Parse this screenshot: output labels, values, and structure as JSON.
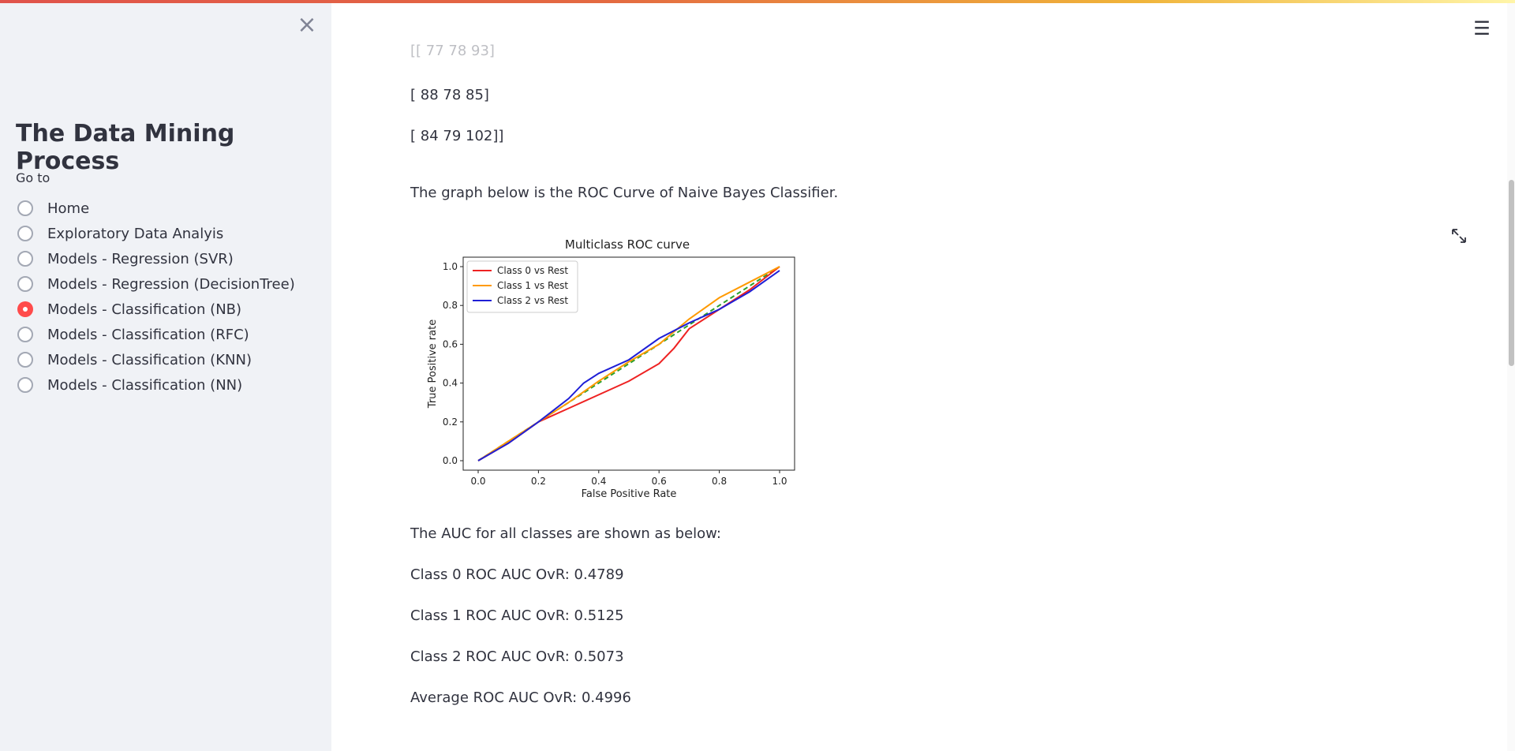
{
  "sidebar": {
    "title": "The Data Mining Process",
    "goto_label": "Go to",
    "items": [
      {
        "label": "Home",
        "checked": false
      },
      {
        "label": "Exploratory Data Analyis",
        "checked": false
      },
      {
        "label": "Models - Regression (SVR)",
        "checked": false
      },
      {
        "label": "Models - Regression (DecisionTree)",
        "checked": false
      },
      {
        "label": "Models - Classification (NB)",
        "checked": true
      },
      {
        "label": "Models - Classification (RFC)",
        "checked": false
      },
      {
        "label": "Models - Classification (KNN)",
        "checked": false
      },
      {
        "label": "Models - Classification (NN)",
        "checked": false
      }
    ]
  },
  "icons": {
    "close": "close-icon",
    "menu": "hamburger-menu-icon",
    "fullscreen": "expand-icon"
  },
  "colors": {
    "accent": "#ff4b4b",
    "class0": "#ee2222",
    "class1": "#ff9a00",
    "class2": "#1f1fd6",
    "baseline": "#2ca02c"
  },
  "main": {
    "matrix_row1": "[[ 77 78 93]",
    "matrix_row2": "[ 88 78 85]",
    "matrix_row3": "[ 84 79 102]]",
    "roc_intro": "The graph below is the ROC Curve of Naive Bayes Classifier.",
    "auc_intro": "The AUC for all classes are shown as below:",
    "auc_class0": "Class 0 ROC AUC OvR: 0.4789",
    "auc_class1": "Class 1 ROC AUC OvR: 0.5125",
    "auc_class2": "Class 2 ROC AUC OvR: 0.5073",
    "auc_average": "Average ROC AUC OvR: 0.4996"
  },
  "chart_data": {
    "type": "line",
    "title": "Multiclass ROC curve",
    "xlabel": "False Positive Rate",
    "ylabel": "True Positive rate",
    "xlim": [
      0.0,
      1.0
    ],
    "ylim": [
      0.0,
      1.0
    ],
    "xticks": [
      "0.0",
      "0.2",
      "0.4",
      "0.6",
      "0.8",
      "1.0"
    ],
    "yticks": [
      "0.0",
      "0.2",
      "0.4",
      "0.6",
      "0.8",
      "1.0"
    ],
    "legend_position": "top-left",
    "grid": false,
    "series": [
      {
        "name": "Class 0 vs Rest",
        "color": "#ee2222",
        "x": [
          0.0,
          0.1,
          0.2,
          0.3,
          0.4,
          0.5,
          0.6,
          0.65,
          0.7,
          0.8,
          0.9,
          1.0
        ],
        "y": [
          0.0,
          0.09,
          0.2,
          0.27,
          0.34,
          0.41,
          0.5,
          0.58,
          0.68,
          0.78,
          0.88,
          1.0
        ]
      },
      {
        "name": "Class 1 vs Rest",
        "color": "#ff9a00",
        "x": [
          0.0,
          0.1,
          0.2,
          0.3,
          0.4,
          0.5,
          0.6,
          0.7,
          0.8,
          0.9,
          1.0
        ],
        "y": [
          0.0,
          0.1,
          0.2,
          0.3,
          0.41,
          0.51,
          0.6,
          0.73,
          0.84,
          0.92,
          1.0
        ]
      },
      {
        "name": "Class 2 vs Rest",
        "color": "#1f1fd6",
        "x": [
          0.0,
          0.1,
          0.2,
          0.3,
          0.35,
          0.4,
          0.5,
          0.6,
          0.7,
          0.8,
          0.9,
          1.0
        ],
        "y": [
          0.0,
          0.09,
          0.2,
          0.32,
          0.4,
          0.45,
          0.52,
          0.63,
          0.71,
          0.78,
          0.87,
          0.98
        ]
      },
      {
        "name": "",
        "color": "#2ca02c",
        "style": "dashed",
        "x": [
          0.0,
          1.0
        ],
        "y": [
          0.0,
          1.0
        ]
      }
    ]
  }
}
